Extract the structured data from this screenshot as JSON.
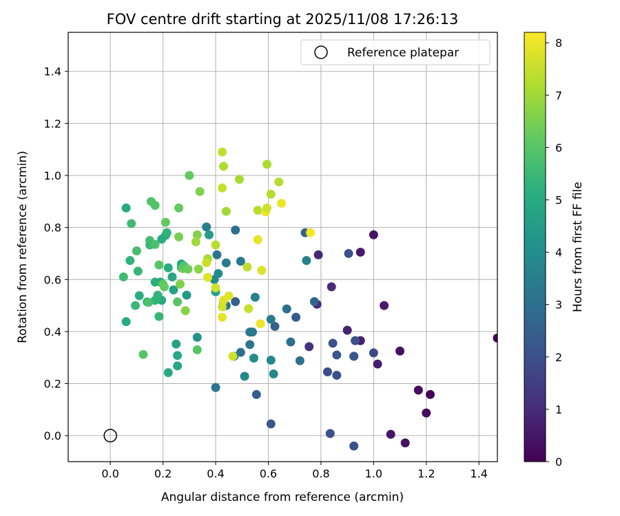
{
  "chart_data": {
    "type": "scatter",
    "title": "FOV centre drift starting at 2025/11/08 17:26:13",
    "xlabel": "Angular distance from reference (arcmin)",
    "ylabel": "Rotation from reference (arcmin)",
    "xlim": [
      -0.16,
      1.47
    ],
    "ylim": [
      -0.1,
      1.55
    ],
    "xticks": [
      "0.0",
      "0.2",
      "0.4",
      "0.6",
      "0.8",
      "1.0",
      "1.2",
      "1.4"
    ],
    "yticks": [
      "0.0",
      "0.2",
      "0.4",
      "0.6",
      "0.8",
      "1.0",
      "1.2",
      "1.4"
    ],
    "grid": true,
    "legend": {
      "position": "top-right",
      "label": "Reference platepar"
    },
    "reference_point": {
      "x": 0.0,
      "y": 0.0
    },
    "colorbar": {
      "label": "Hours from first FF file",
      "colormap": "viridis",
      "range": [
        0,
        8.2
      ],
      "ticks": [
        "0",
        "1",
        "2",
        "3",
        "4",
        "5",
        "6",
        "7",
        "8"
      ]
    },
    "points": [
      {
        "x": 1.47,
        "y": 0.375,
        "c": 0.0
      },
      {
        "x": 1.215,
        "y": 0.158,
        "c": 0.1
      },
      {
        "x": 1.2,
        "y": 0.087,
        "c": 0.2
      },
      {
        "x": 1.17,
        "y": 0.175,
        "c": 0.3
      },
      {
        "x": 1.12,
        "y": -0.028,
        "c": 0.4
      },
      {
        "x": 1.1,
        "y": 0.325,
        "c": 0.4
      },
      {
        "x": 1.065,
        "y": 0.005,
        "c": 0.5
      },
      {
        "x": 1.04,
        "y": 0.5,
        "c": 0.6
      },
      {
        "x": 1.015,
        "y": 0.275,
        "c": 0.7
      },
      {
        "x": 1.0,
        "y": 0.772,
        "c": 0.5
      },
      {
        "x": 0.95,
        "y": 0.705,
        "c": 0.6
      },
      {
        "x": 0.95,
        "y": 0.365,
        "c": 0.7
      },
      {
        "x": 0.9,
        "y": 0.405,
        "c": 0.8
      },
      {
        "x": 0.79,
        "y": 0.695,
        "c": 0.9
      },
      {
        "x": 0.785,
        "y": 0.505,
        "c": 1.0
      },
      {
        "x": 0.84,
        "y": 0.572,
        "c": 1.0
      },
      {
        "x": 0.755,
        "y": 0.342,
        "c": 1.2
      },
      {
        "x": 0.925,
        "y": 0.305,
        "c": 1.5
      },
      {
        "x": 1.0,
        "y": 0.318,
        "c": 1.8
      },
      {
        "x": 0.905,
        "y": 0.7,
        "c": 2.0
      },
      {
        "x": 0.835,
        "y": 0.008,
        "c": 2.0
      },
      {
        "x": 0.925,
        "y": -0.04,
        "c": 2.0
      },
      {
        "x": 0.86,
        "y": 0.31,
        "c": 2.2
      },
      {
        "x": 0.925,
        "y": 0.305,
        "c": 2.2
      },
      {
        "x": 0.93,
        "y": 0.365,
        "c": 2.0
      },
      {
        "x": 0.845,
        "y": 0.355,
        "c": 2.1
      },
      {
        "x": 0.825,
        "y": 0.245,
        "c": 1.9
      },
      {
        "x": 0.86,
        "y": 0.232,
        "c": 2.0
      },
      {
        "x": 0.705,
        "y": 0.455,
        "c": 2.3
      },
      {
        "x": 0.74,
        "y": 0.78,
        "c": 2.6
      },
      {
        "x": 0.775,
        "y": 0.515,
        "c": 2.7
      },
      {
        "x": 0.67,
        "y": 0.487,
        "c": 3.0
      },
      {
        "x": 0.625,
        "y": 0.42,
        "c": 2.5
      },
      {
        "x": 0.61,
        "y": 0.045,
        "c": 2.2
      },
      {
        "x": 0.555,
        "y": 0.158,
        "c": 2.4
      },
      {
        "x": 0.685,
        "y": 0.36,
        "c": 3.0
      },
      {
        "x": 0.72,
        "y": 0.288,
        "c": 3.0
      },
      {
        "x": 0.745,
        "y": 0.673,
        "c": 3.5
      },
      {
        "x": 0.61,
        "y": 0.447,
        "c": 3.4
      },
      {
        "x": 0.61,
        "y": 0.29,
        "c": 3.8
      },
      {
        "x": 0.62,
        "y": 0.237,
        "c": 3.8
      },
      {
        "x": 0.55,
        "y": 0.532,
        "c": 3.6
      },
      {
        "x": 0.53,
        "y": 0.398,
        "c": 3.3
      },
      {
        "x": 0.53,
        "y": 0.35,
        "c": 3.2
      },
      {
        "x": 0.495,
        "y": 0.32,
        "c": 3.0
      },
      {
        "x": 0.54,
        "y": 0.398,
        "c": 3.3
      },
      {
        "x": 0.51,
        "y": 0.228,
        "c": 3.8
      },
      {
        "x": 0.545,
        "y": 0.298,
        "c": 4.0
      },
      {
        "x": 0.475,
        "y": 0.515,
        "c": 2.5
      },
      {
        "x": 0.475,
        "y": 0.79,
        "c": 3.0
      },
      {
        "x": 0.495,
        "y": 0.67,
        "c": 3.3
      },
      {
        "x": 0.44,
        "y": 0.664,
        "c": 3.4
      },
      {
        "x": 0.405,
        "y": 0.695,
        "c": 3.2
      },
      {
        "x": 0.43,
        "y": 0.508,
        "c": 3.3
      },
      {
        "x": 0.44,
        "y": 0.5,
        "c": 3.1
      },
      {
        "x": 0.47,
        "y": 0.305,
        "c": 3.4
      },
      {
        "x": 0.4,
        "y": 0.185,
        "c": 3.2
      },
      {
        "x": 0.395,
        "y": 0.6,
        "c": 3.8
      },
      {
        "x": 0.365,
        "y": 0.802,
        "c": 3.5
      },
      {
        "x": 0.375,
        "y": 0.772,
        "c": 4.5
      },
      {
        "x": 0.41,
        "y": 0.623,
        "c": 4.0
      },
      {
        "x": 0.4,
        "y": 0.553,
        "c": 4.6
      },
      {
        "x": 0.33,
        "y": 0.378,
        "c": 4.2
      },
      {
        "x": 0.29,
        "y": 0.54,
        "c": 4.4
      },
      {
        "x": 0.25,
        "y": 0.352,
        "c": 4.7
      },
      {
        "x": 0.255,
        "y": 0.308,
        "c": 4.9
      },
      {
        "x": 0.255,
        "y": 0.268,
        "c": 4.9
      },
      {
        "x": 0.22,
        "y": 0.242,
        "c": 5.0
      },
      {
        "x": 0.235,
        "y": 0.61,
        "c": 4.8
      },
      {
        "x": 0.24,
        "y": 0.56,
        "c": 4.7
      },
      {
        "x": 0.27,
        "y": 0.66,
        "c": 4.9
      },
      {
        "x": 0.27,
        "y": 0.645,
        "c": 5.2
      },
      {
        "x": 0.22,
        "y": 0.645,
        "c": 5.1
      },
      {
        "x": 0.21,
        "y": 0.77,
        "c": 5.0
      },
      {
        "x": 0.215,
        "y": 0.78,
        "c": 5.3
      },
      {
        "x": 0.195,
        "y": 0.755,
        "c": 5.1
      },
      {
        "x": 0.19,
        "y": 0.59,
        "c": 5.0
      },
      {
        "x": 0.195,
        "y": 0.52,
        "c": 5.0
      },
      {
        "x": 0.17,
        "y": 0.59,
        "c": 5.2
      },
      {
        "x": 0.18,
        "y": 0.54,
        "c": 5.3
      },
      {
        "x": 0.17,
        "y": 0.52,
        "c": 5.3
      },
      {
        "x": 0.14,
        "y": 0.514,
        "c": 5.4
      },
      {
        "x": 0.11,
        "y": 0.538,
        "c": 5.1
      },
      {
        "x": 0.06,
        "y": 0.875,
        "c": 5.0
      },
      {
        "x": 0.06,
        "y": 0.438,
        "c": 5.0
      },
      {
        "x": 0.095,
        "y": 0.5,
        "c": 5.5
      },
      {
        "x": 0.075,
        "y": 0.673,
        "c": 5.3
      },
      {
        "x": 0.08,
        "y": 0.815,
        "c": 5.6
      },
      {
        "x": 0.1,
        "y": 0.71,
        "c": 5.7
      },
      {
        "x": 0.105,
        "y": 0.632,
        "c": 5.4
      },
      {
        "x": 0.05,
        "y": 0.61,
        "c": 5.6
      },
      {
        "x": 0.15,
        "y": 0.75,
        "c": 5.7
      },
      {
        "x": 0.15,
        "y": 0.733,
        "c": 5.5
      },
      {
        "x": 0.17,
        "y": 0.735,
        "c": 5.8
      },
      {
        "x": 0.155,
        "y": 0.9,
        "c": 5.9
      },
      {
        "x": 0.17,
        "y": 0.885,
        "c": 5.9
      },
      {
        "x": 0.185,
        "y": 0.458,
        "c": 5.4
      },
      {
        "x": 0.185,
        "y": 0.656,
        "c": 6.0
      },
      {
        "x": 0.2,
        "y": 0.582,
        "c": 6.1
      },
      {
        "x": 0.205,
        "y": 0.572,
        "c": 6.2
      },
      {
        "x": 0.21,
        "y": 0.82,
        "c": 6.2
      },
      {
        "x": 0.125,
        "y": 0.312,
        "c": 6.0
      },
      {
        "x": 0.145,
        "y": 0.512,
        "c": 5.8
      },
      {
        "x": 0.255,
        "y": 0.514,
        "c": 6.0
      },
      {
        "x": 0.26,
        "y": 0.875,
        "c": 6.2
      },
      {
        "x": 0.265,
        "y": 0.582,
        "c": 6.6
      },
      {
        "x": 0.26,
        "y": 0.764,
        "c": 6.5
      },
      {
        "x": 0.275,
        "y": 0.642,
        "c": 6.4
      },
      {
        "x": 0.28,
        "y": 0.652,
        "c": 6.0
      },
      {
        "x": 0.285,
        "y": 0.48,
        "c": 6.7
      },
      {
        "x": 0.295,
        "y": 0.64,
        "c": 6.3
      },
      {
        "x": 0.3,
        "y": 1.0,
        "c": 6.2
      },
      {
        "x": 0.33,
        "y": 0.772,
        "c": 6.6
      },
      {
        "x": 0.33,
        "y": 0.33,
        "c": 6.0
      },
      {
        "x": 0.335,
        "y": 0.64,
        "c": 6.7
      },
      {
        "x": 0.34,
        "y": 0.938,
        "c": 6.6
      },
      {
        "x": 0.325,
        "y": 0.745,
        "c": 7.0
      },
      {
        "x": 0.37,
        "y": 0.68,
        "c": 7.1
      },
      {
        "x": 0.365,
        "y": 0.665,
        "c": 7.5
      },
      {
        "x": 0.37,
        "y": 0.608,
        "c": 7.8
      },
      {
        "x": 0.4,
        "y": 0.568,
        "c": 7.6
      },
      {
        "x": 0.4,
        "y": 0.733,
        "c": 7.3
      },
      {
        "x": 0.425,
        "y": 0.952,
        "c": 7.5
      },
      {
        "x": 0.425,
        "y": 1.09,
        "c": 7.4
      },
      {
        "x": 0.43,
        "y": 1.035,
        "c": 7.2
      },
      {
        "x": 0.44,
        "y": 0.862,
        "c": 7.0
      },
      {
        "x": 0.425,
        "y": 0.495,
        "c": 7.6
      },
      {
        "x": 0.425,
        "y": 0.455,
        "c": 7.9
      },
      {
        "x": 0.43,
        "y": 0.52,
        "c": 7.8
      },
      {
        "x": 0.45,
        "y": 0.537,
        "c": 7.8
      },
      {
        "x": 0.465,
        "y": 0.305,
        "c": 7.6
      },
      {
        "x": 0.49,
        "y": 0.985,
        "c": 7.1
      },
      {
        "x": 0.52,
        "y": 0.648,
        "c": 7.4
      },
      {
        "x": 0.525,
        "y": 0.488,
        "c": 7.5
      },
      {
        "x": 0.56,
        "y": 0.866,
        "c": 7.3
      },
      {
        "x": 0.56,
        "y": 0.753,
        "c": 7.9
      },
      {
        "x": 0.57,
        "y": 0.43,
        "c": 8.0
      },
      {
        "x": 0.575,
        "y": 0.635,
        "c": 7.8
      },
      {
        "x": 0.59,
        "y": 0.86,
        "c": 8.0
      },
      {
        "x": 0.595,
        "y": 0.875,
        "c": 7.6
      },
      {
        "x": 0.595,
        "y": 1.043,
        "c": 7.2
      },
      {
        "x": 0.61,
        "y": 0.928,
        "c": 7.3
      },
      {
        "x": 0.64,
        "y": 0.975,
        "c": 7.3
      },
      {
        "x": 0.65,
        "y": 0.893,
        "c": 8.0
      },
      {
        "x": 0.76,
        "y": 0.78,
        "c": 8.1
      }
    ]
  }
}
